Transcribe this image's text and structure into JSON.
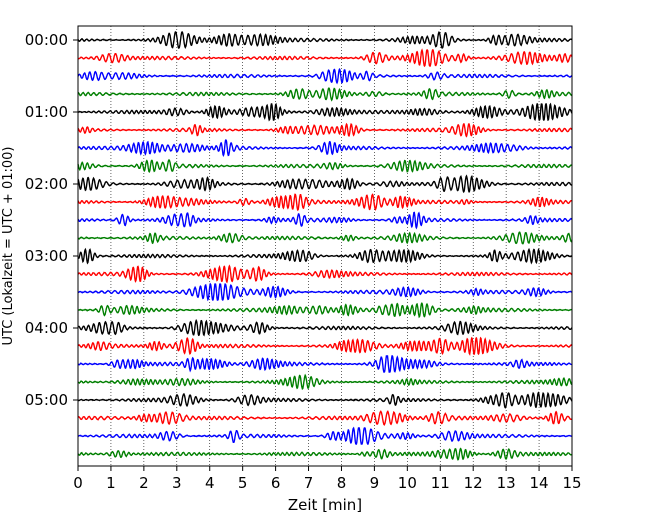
{
  "chart_data": {
    "type": "line",
    "title": "",
    "xlabel": "Zeit  [min]",
    "ylabel": "UTC (Lokalzeit = UTC + 01:00)",
    "xlim": [
      0,
      15
    ],
    "xticks": [
      0,
      1,
      2,
      3,
      4,
      5,
      6,
      7,
      8,
      9,
      10,
      11,
      12,
      13,
      14,
      15
    ],
    "ytick_labels": [
      "00:00",
      "01:00",
      "02:00",
      "03:00",
      "04:00",
      "05:00"
    ],
    "trace_interval_min": 15,
    "trace_count": 24,
    "trace_colors": [
      "#000000",
      "#ff0000",
      "#0000ff",
      "#007f00"
    ],
    "grid": "vertical dotted at each minute",
    "legend": "none"
  }
}
